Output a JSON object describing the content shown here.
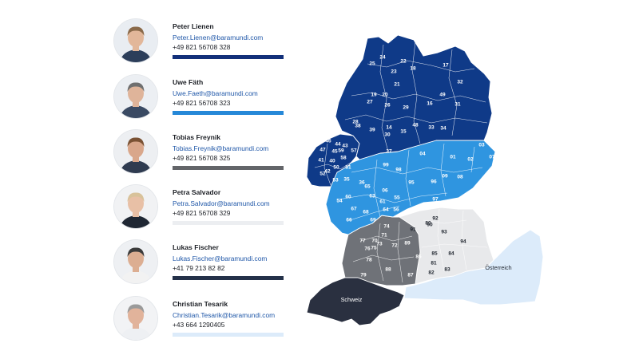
{
  "contacts": [
    {
      "name": "Peter Lienen",
      "email": "Peter.Lienen@baramundi.com",
      "phone": "+49 821 56708 328",
      "bar_color": "#12307a",
      "avatar_bg": "#e9edf2",
      "skin": "#e2b79a",
      "hair": "#8a6a4a",
      "shirt": "#2c3e5a"
    },
    {
      "name": "Uwe Fäth",
      "email": "Uwe.Faeth@baramundi.com",
      "phone": "+49 821 56708 323",
      "bar_color": "#2688d8",
      "avatar_bg": "#eceff3",
      "skin": "#dfb49a",
      "hair": "#6f6f6f",
      "shirt": "#3a4a63"
    },
    {
      "name": "Tobias Freynik",
      "email": "Tobias.Freynik@baramundi.com",
      "phone": "+49 821 56708 325",
      "bar_color": "#636569",
      "avatar_bg": "#edeff2",
      "skin": "#d9a78b",
      "hair": "#7a5234",
      "shirt": "#2f3b50"
    },
    {
      "name": "Petra Salvador",
      "email": "Petra.Salvador@baramundi.com",
      "phone": "+49 821 56708 329",
      "bar_color": "#eceef1",
      "avatar_bg": "#f1f2f4",
      "skin": "#e8c0a6",
      "hair": "#d8c29a",
      "shirt": "#1f2733"
    },
    {
      "name": "Lukas Fischer",
      "email": "Lukas.Fischer@baramundi.com",
      "phone": "+41 79 213 82 82",
      "bar_color": "#243149",
      "avatar_bg": "#eef0f3",
      "skin": "#dcae92",
      "hair": "#3b3b3b",
      "shirt": "#f2f2f2"
    },
    {
      "name": "Christian Tesarik",
      "email": "Christian.Tesarik@baramundi.com",
      "phone": "+43 664 1290405",
      "bar_color": "#dcebfa",
      "avatar_bg": "#f2f3f5",
      "skin": "#e1b39b",
      "hair": "#9a9a9a",
      "shirt": "#eef0f3"
    }
  ],
  "map": {
    "colors": {
      "dark_navy": "#0f3a88",
      "blue": "#2f95e0",
      "grey": "#6f7278",
      "light": "#e8e9eb",
      "swiss": "#2a3040",
      "austria": "#dcebfa"
    },
    "country_labels": {
      "switzerland": "Schweiz",
      "austria": "Österreich"
    },
    "region_labels": {
      "north": [
        "25",
        "24",
        "23",
        "22",
        "18",
        "17",
        "21",
        "20",
        "19",
        "27",
        "28",
        "26",
        "29",
        "30",
        "16",
        "49",
        "32",
        "31",
        "38",
        "39",
        "14",
        "15",
        "48",
        "33",
        "34",
        "37"
      ],
      "north_west": [
        "46",
        "44",
        "47",
        "45",
        "43",
        "41",
        "40",
        "42",
        "59",
        "58",
        "50",
        "51",
        "57",
        "53",
        "52"
      ],
      "center": [
        "35",
        "36",
        "99",
        "98",
        "06",
        "04",
        "01",
        "02",
        "03",
        "07",
        "09",
        "08",
        "96",
        "95",
        "97",
        "65",
        "60",
        "63",
        "61",
        "55",
        "56",
        "64",
        "54",
        "67",
        "66",
        "68",
        "69"
      ],
      "south_west": [
        "74",
        "71",
        "70",
        "73",
        "72",
        "78",
        "76",
        "77",
        "75",
        "79",
        "88",
        "89",
        "86",
        "87"
      ],
      "south_east": [
        "91",
        "90",
        "93",
        "92",
        "94",
        "85",
        "84",
        "80",
        "81",
        "82",
        "83"
      ]
    }
  }
}
